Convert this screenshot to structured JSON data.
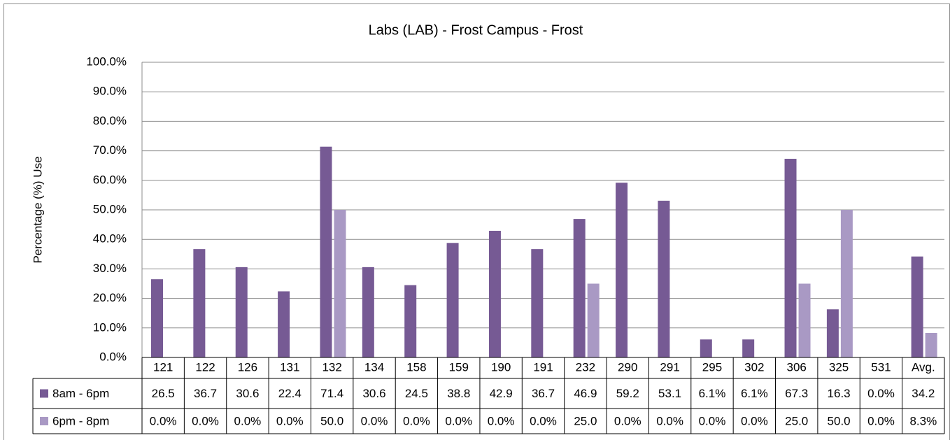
{
  "chart_data": {
    "type": "bar",
    "title": "Labs (LAB) - Frost Campus - Frost",
    "y_label": "Percentage (%) Use",
    "categories": [
      "121",
      "122",
      "126",
      "131",
      "132",
      "134",
      "158",
      "159",
      "190",
      "191",
      "232",
      "290",
      "291",
      "295",
      "302",
      "306",
      "325",
      "531",
      "Avg."
    ],
    "series": [
      {
        "name": "8am - 6pm",
        "color": "#765a94",
        "values": [
          26.5,
          36.7,
          30.6,
          22.4,
          71.4,
          30.6,
          24.5,
          38.8,
          42.9,
          36.7,
          46.9,
          59.2,
          53.1,
          6.1,
          6.1,
          67.3,
          16.3,
          0.0,
          34.2
        ],
        "value_labels": [
          "26.5",
          "36.7",
          "30.6",
          "22.4",
          "71.4",
          "30.6",
          "24.5",
          "38.8",
          "42.9",
          "36.7",
          "46.9",
          "59.2",
          "53.1",
          "6.1%",
          "6.1%",
          "67.3",
          "16.3",
          "0.0%",
          "34.2"
        ]
      },
      {
        "name": "6pm - 8pm",
        "color": "#a999c4",
        "values": [
          0.0,
          0.0,
          0.0,
          0.0,
          50.0,
          0.0,
          0.0,
          0.0,
          0.0,
          0.0,
          25.0,
          0.0,
          0.0,
          0.0,
          0.0,
          25.0,
          50.0,
          0.0,
          8.3
        ],
        "value_labels": [
          "0.0%",
          "0.0%",
          "0.0%",
          "0.0%",
          "50.0",
          "0.0%",
          "0.0%",
          "0.0%",
          "0.0%",
          "0.0%",
          "25.0",
          "0.0%",
          "0.0%",
          "0.0%",
          "0.0%",
          "25.0",
          "50.0",
          "0.0%",
          "8.3%"
        ]
      }
    ],
    "ylim": [
      0,
      100
    ],
    "yticks": [
      {
        "value": 0,
        "label": "0.0%"
      },
      {
        "value": 10,
        "label": "10.0%"
      },
      {
        "value": 20,
        "label": "20.0%"
      },
      {
        "value": 30,
        "label": "30.0%"
      },
      {
        "value": 40,
        "label": "40.0%"
      },
      {
        "value": 50,
        "label": "50.0%"
      },
      {
        "value": 60,
        "label": "60.0%"
      },
      {
        "value": 70,
        "label": "70.0%"
      },
      {
        "value": 80,
        "label": "80.0%"
      },
      {
        "value": 90,
        "label": "90.0%"
      },
      {
        "value": 100,
        "label": "100.0%"
      }
    ],
    "grid": true,
    "legend": "table"
  }
}
